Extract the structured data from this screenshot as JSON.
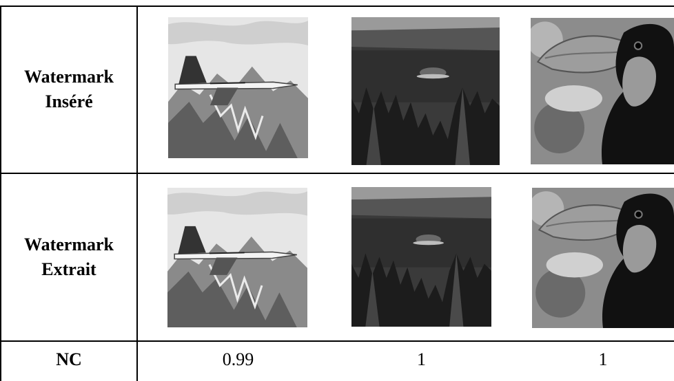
{
  "rows": {
    "inserted": {
      "line1": "Watermark",
      "line2": "Inséré"
    },
    "extracted": {
      "line1": "Watermark",
      "line2": "Extrait"
    },
    "nc": {
      "label": "NC",
      "values": [
        "0.99",
        "1",
        "1"
      ]
    }
  },
  "images": [
    {
      "icon": "jet-over-mountains-photo"
    },
    {
      "icon": "lake-forest-island-photo"
    },
    {
      "icon": "toucan-photo"
    }
  ]
}
